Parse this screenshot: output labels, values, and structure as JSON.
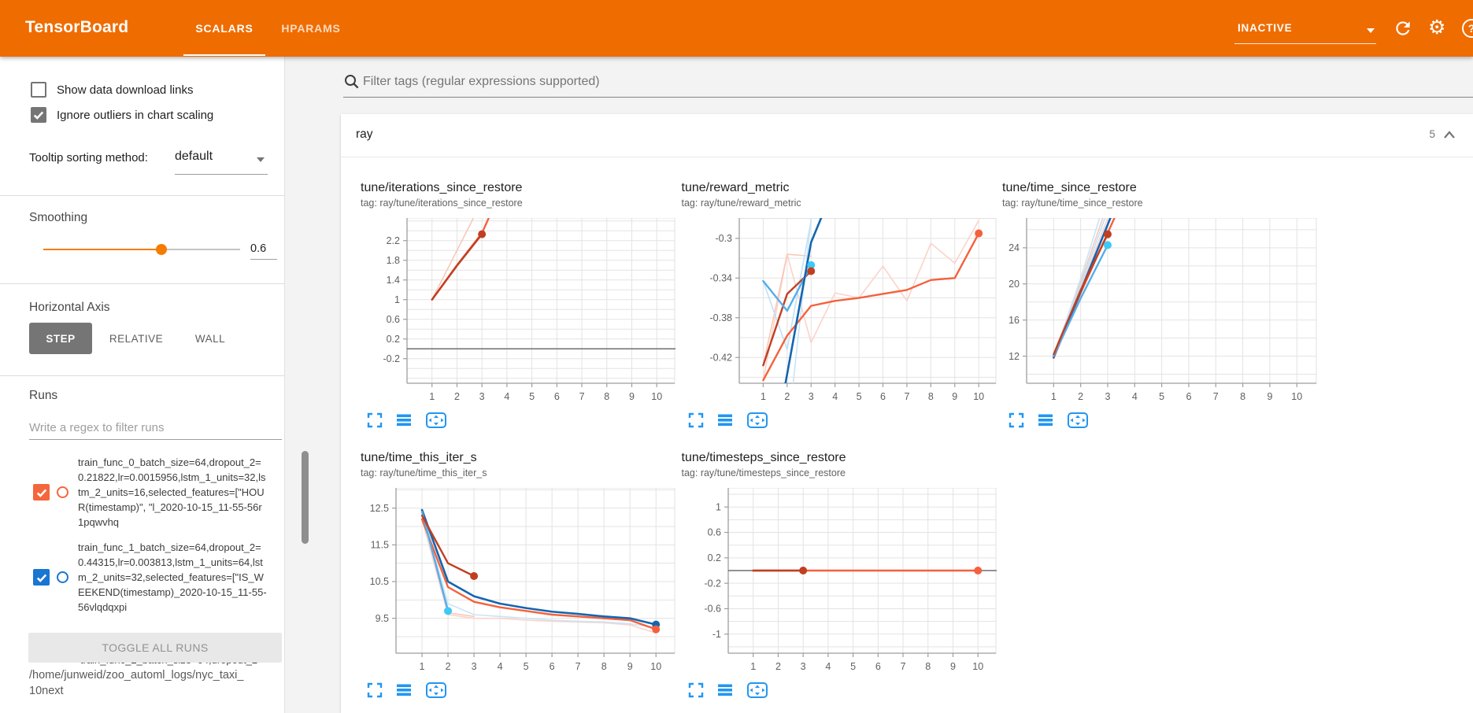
{
  "header": {
    "logo": "TensorBoard",
    "tabs": [
      {
        "label": "SCALARS",
        "active": true
      },
      {
        "label": "HPARAMS",
        "active": false
      }
    ],
    "run_status": {
      "value": "INACTIVE"
    },
    "help_label": "?"
  },
  "sidebar": {
    "checkboxes": [
      {
        "label": "Show data download links",
        "checked": false
      },
      {
        "label": "Ignore outliers in chart scaling",
        "checked": true
      }
    ],
    "tooltip_sort": {
      "label": "Tooltip sorting method:",
      "value": "default"
    },
    "smoothing": {
      "label": "Smoothing",
      "value": "0.6",
      "percent": 60
    },
    "horizontal_axis": {
      "label": "Horizontal Axis",
      "options": [
        {
          "label": "STEP",
          "active": true
        },
        {
          "label": "RELATIVE",
          "active": false
        },
        {
          "label": "WALL",
          "active": false
        }
      ]
    },
    "runs": {
      "label": "Runs",
      "filter_placeholder": "Write a regex to filter runs",
      "toggle_all_label": "TOGGLE ALL RUNS",
      "log_dir_lines": [
        "/home/junweid/zoo_automl_logs/nyc_taxi_",
        "10next"
      ],
      "items": [
        {
          "color": "#f5663d",
          "checked": true,
          "partial": false,
          "lines": [
            "train_func_0_batch_size=64,dropout_2=",
            "0.21822,lr=0.0015956,lstm_1_units=32,ls",
            "tm_2_units=16,selected_features=[\"HOU",
            "R(timestamp)\", \"l_2020-10-15_11-55-56r",
            "1pqwvhq"
          ]
        },
        {
          "color": "#1976d2",
          "checked": true,
          "partial": false,
          "lines": [
            "train_func_1_batch_size=64,dropout_2=",
            "0.44315,lr=0.003813,lstm_1_units=64,lst",
            "m_2_units=32,selected_features=[\"IS_W",
            "EEKEND(timestamp)_2020-10-15_11-55-",
            "56vlqdqxpi"
          ]
        },
        {
          "color": "#9e9e9e",
          "checked": false,
          "partial": true,
          "lines": [
            "train_func_2_batch_size=64,dropout_2="
          ]
        }
      ]
    }
  },
  "main": {
    "filter": {
      "placeholder": "Filter tags (regular expressions supported)"
    },
    "section": {
      "title": "ray",
      "count": "5"
    }
  },
  "chart_data": [
    {
      "type": "line",
      "title": "tune/iterations_since_restore",
      "tag": "tag: ray/tune/iterations_since_restore",
      "xlabel": "step",
      "ylabel": "",
      "xlim": [
        0,
        10.75
      ],
      "xticks": [
        1,
        2,
        3,
        4,
        5,
        6,
        7,
        8,
        9,
        10
      ],
      "ylim": [
        -0.7,
        2.66
      ],
      "yticks": [
        2.2,
        1.8,
        1.4,
        1,
        0.6,
        0.2,
        -0.2
      ],
      "grid_step": 0.2,
      "series": [
        {
          "name": "zero-baseline",
          "color": "#6e6e6e",
          "width": 1.6,
          "points": [
            [
              0,
              0
            ],
            [
              10.75,
              0
            ]
          ]
        },
        {
          "name": "run0-raw",
          "color": "#f7c9ba",
          "width": 1.6,
          "points": [
            [
              1,
              1
            ],
            [
              2,
              2
            ],
            [
              2.75,
              2.75
            ]
          ]
        },
        {
          "name": "run-orange-smoothed",
          "color": "#f4613c",
          "width": 2.4,
          "points": [
            [
              1,
              1
            ],
            [
              2,
              1.7
            ],
            [
              3,
              2.35
            ],
            [
              3.35,
              2.75
            ]
          ]
        },
        {
          "name": "run0-smoothed",
          "color": "#c03f22",
          "width": 2.4,
          "points": [
            [
              1,
              1
            ],
            [
              2,
              1.69
            ],
            [
              3,
              2.33
            ]
          ]
        }
      ],
      "dots": [
        {
          "x": 3,
          "y": 2.33,
          "color": "#c03f22"
        }
      ]
    },
    {
      "type": "line",
      "title": "tune/reward_metric",
      "tag": "tag: ray/tune/reward_metric",
      "xlabel": "step",
      "ylabel": "",
      "xlim": [
        0,
        10.75
      ],
      "xticks": [
        1,
        2,
        3,
        4,
        5,
        6,
        7,
        8,
        9,
        10
      ],
      "ylim": [
        -0.446,
        -0.2795
      ],
      "yticks": [
        -0.3,
        -0.34,
        -0.38,
        -0.42
      ],
      "grid_step": 0.02,
      "series": [
        {
          "name": "run-orange-raw",
          "color": "#fbd3c8",
          "width": 1.6,
          "points": [
            [
              1,
              -0.443
            ],
            [
              2,
              -0.316
            ],
            [
              3,
              -0.405
            ],
            [
              4,
              -0.355
            ],
            [
              5,
              -0.36
            ],
            [
              6,
              -0.328
            ],
            [
              7,
              -0.363
            ],
            [
              8,
              -0.305
            ],
            [
              9,
              -0.325
            ],
            [
              10,
              -0.282
            ]
          ]
        },
        {
          "name": "run0-raw",
          "color": "#f7c9ba",
          "width": 1.6,
          "points": [
            [
              1,
              -0.428
            ],
            [
              2,
              -0.316
            ],
            [
              3,
              -0.318
            ]
          ]
        },
        {
          "name": "run-cyan-raw",
          "color": "#bfe2f8",
          "width": 1.6,
          "points": [
            [
              1,
              -0.343
            ],
            [
              2,
              -0.412
            ],
            [
              3,
              -0.282
            ]
          ]
        },
        {
          "name": "run1-raw",
          "color": "#c9e4f6",
          "width": 1.6,
          "points": [
            [
              2.25,
              -0.446
            ],
            [
              3,
              -0.28
            ]
          ]
        },
        {
          "name": "run-orange-smoothed",
          "color": "#f4613c",
          "width": 2.4,
          "points": [
            [
              1,
              -0.443
            ],
            [
              2,
              -0.398
            ],
            [
              3,
              -0.368
            ],
            [
              4,
              -0.363
            ],
            [
              5,
              -0.36
            ],
            [
              6,
              -0.356
            ],
            [
              7,
              -0.352
            ],
            [
              8,
              -0.342
            ],
            [
              9,
              -0.34
            ],
            [
              10,
              -0.295
            ]
          ]
        },
        {
          "name": "run0-smoothed",
          "color": "#c03f22",
          "width": 2.4,
          "points": [
            [
              1,
              -0.428
            ],
            [
              2,
              -0.356
            ],
            [
              3,
              -0.333
            ]
          ]
        },
        {
          "name": "run-cyan-smoothed",
          "color": "#54aee8",
          "width": 2.4,
          "points": [
            [
              1,
              -0.343
            ],
            [
              2,
              -0.373
            ],
            [
              3,
              -0.327
            ]
          ]
        },
        {
          "name": "run1-smoothed",
          "color": "#1465b0",
          "width": 2.6,
          "points": [
            [
              1.93,
              -0.446
            ],
            [
              3,
              -0.304
            ],
            [
              3.42,
              -0.2795
            ]
          ]
        }
      ],
      "dots": [
        {
          "x": 3,
          "y": -0.327,
          "color": "#3ec9f6"
        },
        {
          "x": 3,
          "y": -0.333,
          "color": "#c03f22"
        },
        {
          "x": 10,
          "y": -0.295,
          "color": "#f4613c"
        }
      ]
    },
    {
      "type": "line",
      "title": "tune/time_since_restore",
      "tag": "tag: ray/tune/time_since_restore",
      "xlabel": "step",
      "ylabel": "",
      "xlim": [
        0,
        10.75
      ],
      "xticks": [
        1,
        2,
        3,
        4,
        5,
        6,
        7,
        8,
        9,
        10
      ],
      "ylim": [
        9.0,
        27.3
      ],
      "yticks": [
        24,
        20,
        16,
        12
      ],
      "grid_step": 2,
      "series": [
        {
          "name": "run0-raw",
          "color": "#f7c9ba",
          "width": 1.6,
          "points": [
            [
              1,
              12.2
            ],
            [
              2,
              20.2
            ],
            [
              2.82,
              27.3
            ]
          ]
        },
        {
          "name": "run-orange-raw",
          "color": "#fbd3c8",
          "width": 1.6,
          "points": [
            [
              1,
              11.8
            ],
            [
              2,
              19.5
            ],
            [
              3,
              27.3
            ]
          ]
        },
        {
          "name": "run1-raw",
          "color": "#c9e4f6",
          "width": 1.6,
          "points": [
            [
              1,
              11.9
            ],
            [
              2,
              20.6
            ],
            [
              2.7,
              27.3
            ]
          ]
        },
        {
          "name": "run-cyan-raw",
          "color": "#bfe2f8",
          "width": 1.6,
          "points": [
            [
              1,
              12
            ],
            [
              2,
              19.8
            ],
            [
              2.9,
              27.3
            ]
          ]
        },
        {
          "name": "run-orange-smoothed",
          "color": "#f4613c",
          "width": 2.4,
          "points": [
            [
              1,
              11.8
            ],
            [
              2,
              19
            ],
            [
              3.25,
              27.3
            ]
          ]
        },
        {
          "name": "run1-smoothed",
          "color": "#1465b0",
          "width": 2.6,
          "points": [
            [
              1,
              11.9
            ],
            [
              2,
              19.2
            ],
            [
              3.1,
              27.3
            ]
          ]
        },
        {
          "name": "run-cyan-smoothed",
          "color": "#54aee8",
          "width": 2.4,
          "points": [
            [
              1,
              12
            ],
            [
              2,
              18.4
            ],
            [
              3,
              24.3
            ]
          ]
        },
        {
          "name": "run0-smoothed",
          "color": "#c03f22",
          "width": 2.4,
          "points": [
            [
              1,
              12.2
            ],
            [
              2,
              19.3
            ],
            [
              3,
              25.5
            ]
          ]
        }
      ],
      "dots": [
        {
          "x": 3,
          "y": 25.5,
          "color": "#c03f22"
        },
        {
          "x": 3,
          "y": 24.3,
          "color": "#3ec9f6"
        }
      ]
    },
    {
      "type": "line",
      "title": "tune/time_this_iter_s",
      "tag": "tag: ray/tune/time_this_iter_s",
      "xlabel": "step",
      "ylabel": "",
      "xlim": [
        0,
        10.75
      ],
      "xticks": [
        1,
        2,
        3,
        4,
        5,
        6,
        7,
        8,
        9,
        10
      ],
      "ylim": [
        8.55,
        13.05
      ],
      "yticks": [
        12.5,
        11.5,
        10.5,
        9.5
      ],
      "grid_step": 0.5,
      "series": [
        {
          "name": "run0-raw",
          "color": "#f7c9ba",
          "width": 1.6,
          "points": [
            [
              1,
              12.3
            ],
            [
              2,
              9.65
            ],
            [
              3,
              9.55
            ]
          ]
        },
        {
          "name": "run-orange-raw",
          "color": "#fbd3c8",
          "width": 1.6,
          "points": [
            [
              1,
              12.2
            ],
            [
              2,
              9.6
            ],
            [
              3,
              9.5
            ],
            [
              4,
              9.5
            ],
            [
              5,
              9.45
            ],
            [
              6,
              9.42
            ],
            [
              7,
              9.4
            ],
            [
              8,
              9.38
            ],
            [
              9,
              9.32
            ],
            [
              10,
              9.1
            ]
          ]
        },
        {
          "name": "run1-raw",
          "color": "#c9e4f6",
          "width": 1.6,
          "points": [
            [
              1,
              12.45
            ],
            [
              2,
              9.9
            ],
            [
              3,
              9.6
            ],
            [
              4,
              9.55
            ],
            [
              5,
              9.5
            ],
            [
              6,
              9.45
            ],
            [
              7,
              9.42
            ],
            [
              8,
              9.4
            ],
            [
              9,
              9.35
            ],
            [
              10,
              9.25
            ]
          ]
        },
        {
          "name": "run-cyan-raw",
          "color": "#bfe2f8",
          "width": 1.6,
          "points": [
            [
              1,
              12.4
            ],
            [
              2,
              9.75
            ]
          ]
        },
        {
          "name": "run-orange-smoothed",
          "color": "#f4613c",
          "width": 2.4,
          "points": [
            [
              1,
              12.2
            ],
            [
              2,
              10.35
            ],
            [
              3,
              9.95
            ],
            [
              4,
              9.8
            ],
            [
              5,
              9.7
            ],
            [
              6,
              9.6
            ],
            [
              7,
              9.55
            ],
            [
              8,
              9.5
            ],
            [
              9,
              9.45
            ],
            [
              10,
              9.2
            ]
          ]
        },
        {
          "name": "run1-smoothed",
          "color": "#1465b0",
          "width": 2.6,
          "points": [
            [
              1,
              12.45
            ],
            [
              2,
              10.5
            ],
            [
              3,
              10.1
            ],
            [
              4,
              9.9
            ],
            [
              5,
              9.78
            ],
            [
              6,
              9.68
            ],
            [
              7,
              9.62
            ],
            [
              8,
              9.55
            ],
            [
              9,
              9.5
            ],
            [
              10,
              9.33
            ]
          ]
        },
        {
          "name": "run-cyan-smoothed",
          "color": "#54aee8",
          "width": 2.4,
          "points": [
            [
              1,
              12.4
            ],
            [
              2,
              9.7
            ]
          ]
        },
        {
          "name": "run0-smoothed",
          "color": "#c03f22",
          "width": 2.4,
          "points": [
            [
              1,
              12.3
            ],
            [
              2,
              11
            ],
            [
              3,
              10.65
            ]
          ]
        }
      ],
      "dots": [
        {
          "x": 3,
          "y": 10.65,
          "color": "#c03f22"
        },
        {
          "x": 2,
          "y": 9.7,
          "color": "#3ec9f6"
        },
        {
          "x": 10,
          "y": 9.33,
          "color": "#1465b0"
        },
        {
          "x": 10,
          "y": 9.2,
          "color": "#f4613c"
        }
      ]
    },
    {
      "type": "line",
      "title": "tune/timesteps_since_restore",
      "tag": "tag: ray/tune/timesteps_since_restore",
      "xlabel": "step",
      "ylabel": "",
      "xlim": [
        0,
        10.75
      ],
      "xticks": [
        1,
        2,
        3,
        4,
        5,
        6,
        7,
        8,
        9,
        10
      ],
      "ylim": [
        -1.3,
        1.3
      ],
      "yticks": [
        1,
        0.6,
        0.2,
        -0.2,
        -0.6,
        -1
      ],
      "grid_step": 0.2,
      "series": [
        {
          "name": "zero-baseline",
          "color": "#6e6e6e",
          "width": 1.6,
          "points": [
            [
              0,
              0
            ],
            [
              10.75,
              0
            ]
          ]
        },
        {
          "name": "run-orange-smoothed",
          "color": "#f4613c",
          "width": 2.6,
          "points": [
            [
              1,
              0
            ],
            [
              10,
              0
            ]
          ]
        },
        {
          "name": "run0-smoothed",
          "color": "#c03f22",
          "width": 2.6,
          "points": [
            [
              1,
              0
            ],
            [
              3,
              0
            ]
          ]
        }
      ],
      "dots": [
        {
          "x": 3,
          "y": 0,
          "color": "#c03f22"
        },
        {
          "x": 10,
          "y": 0,
          "color": "#f4613c"
        }
      ]
    }
  ]
}
